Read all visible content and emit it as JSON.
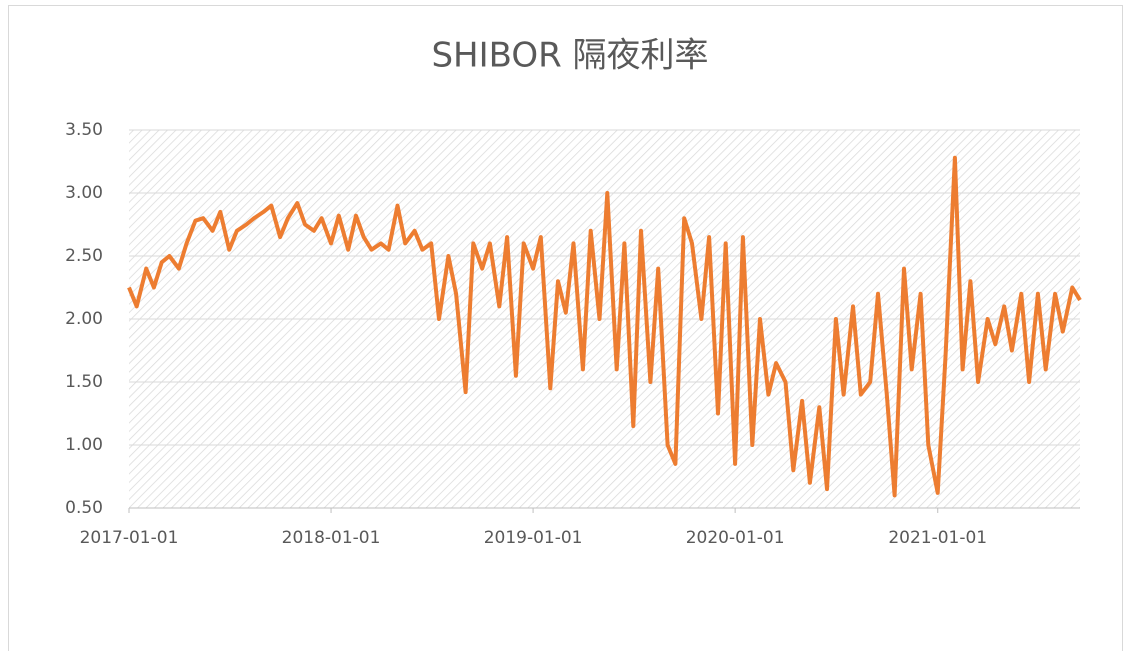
{
  "chart_data": {
    "type": "line",
    "title": "SHIBOR 隔夜利率",
    "color": "#ed7d31",
    "x": [
      "2017-01-01",
      "2017-01-15",
      "2017-02-01",
      "2017-02-15",
      "2017-03-01",
      "2017-03-15",
      "2017-04-01",
      "2017-04-15",
      "2017-05-01",
      "2017-05-15",
      "2017-06-01",
      "2017-06-15",
      "2017-07-01",
      "2017-07-15",
      "2017-08-01",
      "2017-08-15",
      "2017-09-01",
      "2017-09-15",
      "2017-10-01",
      "2017-10-15",
      "2017-11-01",
      "2017-11-15",
      "2017-12-01",
      "2017-12-15",
      "2018-01-01",
      "2018-01-15",
      "2018-02-01",
      "2018-02-15",
      "2018-03-01",
      "2018-03-15",
      "2018-04-01",
      "2018-04-15",
      "2018-05-01",
      "2018-05-15",
      "2018-06-01",
      "2018-06-15",
      "2018-07-01",
      "2018-07-15",
      "2018-08-01",
      "2018-08-15",
      "2018-09-01",
      "2018-09-15",
      "2018-10-01",
      "2018-10-15",
      "2018-11-01",
      "2018-11-15",
      "2018-12-01",
      "2018-12-15",
      "2019-01-01",
      "2019-01-15",
      "2019-02-01",
      "2019-02-15",
      "2019-03-01",
      "2019-03-15",
      "2019-04-01",
      "2019-04-15",
      "2019-05-01",
      "2019-05-15",
      "2019-06-01",
      "2019-06-15",
      "2019-07-01",
      "2019-07-15",
      "2019-08-01",
      "2019-08-15",
      "2019-09-01",
      "2019-09-15",
      "2019-10-01",
      "2019-10-15",
      "2019-11-01",
      "2019-11-15",
      "2019-12-01",
      "2019-12-15",
      "2020-01-01",
      "2020-01-15",
      "2020-02-01",
      "2020-02-15",
      "2020-03-01",
      "2020-03-15",
      "2020-04-01",
      "2020-04-15",
      "2020-05-01",
      "2020-05-15",
      "2020-06-01",
      "2020-06-15",
      "2020-07-01",
      "2020-07-15",
      "2020-08-01",
      "2020-08-15",
      "2020-09-01",
      "2020-09-15",
      "2020-10-01",
      "2020-10-15",
      "2020-11-01",
      "2020-11-15",
      "2020-12-01",
      "2020-12-15",
      "2021-01-01",
      "2021-01-15",
      "2021-02-01",
      "2021-02-15",
      "2021-03-01",
      "2021-03-15",
      "2021-04-01",
      "2021-04-15",
      "2021-05-01",
      "2021-05-15",
      "2021-06-01",
      "2021-06-15",
      "2021-07-01",
      "2021-07-15",
      "2021-08-01",
      "2021-08-15",
      "2021-09-01",
      "2021-09-15"
    ],
    "values": [
      2.25,
      2.1,
      2.4,
      2.25,
      2.45,
      2.5,
      2.4,
      2.6,
      2.78,
      2.8,
      2.7,
      2.85,
      2.55,
      2.7,
      2.75,
      2.8,
      2.85,
      2.9,
      2.65,
      2.8,
      2.92,
      2.75,
      2.7,
      2.8,
      2.6,
      2.82,
      2.55,
      2.82,
      2.65,
      2.55,
      2.6,
      2.55,
      2.9,
      2.6,
      2.7,
      2.55,
      2.6,
      2.0,
      2.5,
      2.2,
      1.42,
      2.6,
      2.4,
      2.6,
      2.1,
      2.65,
      1.55,
      2.6,
      2.4,
      2.65,
      1.45,
      2.3,
      2.05,
      2.6,
      1.6,
      2.7,
      2.0,
      3.0,
      1.6,
      2.6,
      1.15,
      2.7,
      1.5,
      2.4,
      1.0,
      0.85,
      2.8,
      2.6,
      2.0,
      2.65,
      1.25,
      2.6,
      0.85,
      2.65,
      1.0,
      2.0,
      1.4,
      1.65,
      1.5,
      0.8,
      1.35,
      0.7,
      1.3,
      0.65,
      2.0,
      1.4,
      2.1,
      1.4,
      1.5,
      2.2,
      1.4,
      0.6,
      2.4,
      1.6,
      2.2,
      1.0,
      0.62,
      1.7,
      3.28,
      1.6,
      2.3,
      1.5,
      2.0,
      1.8,
      2.1,
      1.75,
      2.2,
      1.5,
      2.2,
      1.6,
      2.2,
      1.9,
      2.25,
      2.15
    ],
    "xlim": [
      "2017-01-01",
      "2021-09-15"
    ],
    "xticks": [
      "2017-01-01",
      "2018-01-01",
      "2019-01-01",
      "2020-01-01",
      "2021-01-01"
    ],
    "ylim": [
      0.5,
      3.5
    ],
    "yticks": [
      {
        "value": 0.5,
        "label": "0.50"
      },
      {
        "value": 1,
        "label": "1.00"
      },
      {
        "value": 1.5,
        "label": "1.50"
      },
      {
        "value": 2,
        "label": "2.00"
      },
      {
        "value": 2.5,
        "label": "2.50"
      },
      {
        "value": 3,
        "label": "3.00"
      },
      {
        "value": 3.5,
        "label": "3.50"
      }
    ],
    "grid": true
  }
}
